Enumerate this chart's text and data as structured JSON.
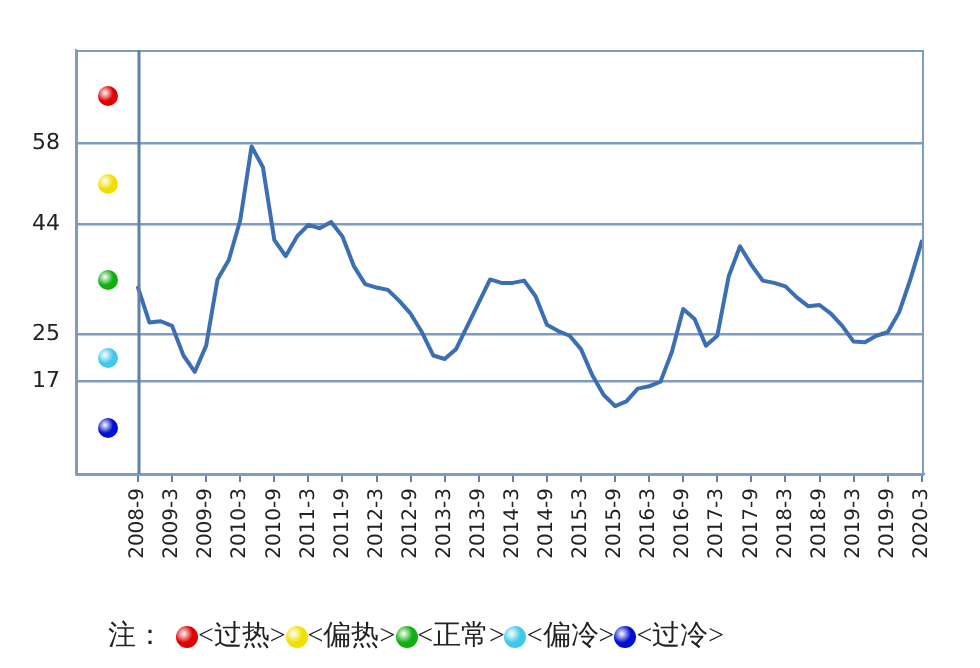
{
  "chart_data": {
    "type": "line",
    "categories": [
      "2008-9",
      null,
      null,
      "2009-3",
      null,
      null,
      "2009-9",
      null,
      null,
      "2010-3",
      null,
      null,
      "2010-9",
      null,
      null,
      "2011-3",
      null,
      null,
      "2011-9",
      null,
      null,
      "2012-3",
      null,
      null,
      "2012-9",
      null,
      null,
      "2013-3",
      null,
      null,
      "2013-9",
      null,
      null,
      "2014-3",
      null,
      null,
      "2014-9",
      null,
      null,
      "2015-3",
      null,
      null,
      "2015-9",
      null,
      null,
      "2016-3",
      null,
      null,
      "2016-9",
      null,
      null,
      "2017-3",
      null,
      null,
      "2017-9",
      null,
      null,
      "2018-3",
      null,
      null,
      "2018-9",
      null,
      null,
      "2019-3",
      null,
      null,
      "2019-9",
      null,
      null,
      "2020-3"
    ],
    "series": [
      {
        "color": "#3c6eb4",
        "values": [
          33.1,
          27.1,
          27.3,
          26.5,
          21.4,
          18.6,
          23.1,
          34.5,
          37.9,
          44.7,
          57.4,
          53.8,
          41.3,
          38.5,
          41.9,
          43.9,
          43.3,
          44.4,
          41.9,
          36.8,
          33.7,
          33.1,
          32.7,
          30.8,
          28.6,
          25.4,
          21.4,
          20.8,
          22.5,
          26.5,
          30.5,
          34.5,
          33.9,
          33.9,
          34.3,
          31.6,
          26.7,
          25.6,
          24.8,
          22.5,
          18.0,
          14.6,
          12.7,
          13.5,
          15.7,
          16.1,
          16.9,
          22.0,
          29.4,
          27.7,
          23.1,
          24.8,
          35.0,
          40.2,
          37.0,
          34.3,
          33.9,
          33.3,
          31.4,
          29.9,
          30.1,
          28.6,
          26.5,
          23.8,
          23.7,
          24.8,
          25.4,
          28.8,
          34.5,
          41.0
        ]
      }
    ],
    "ylim": [
      1,
      74
    ],
    "yticks": [
      17,
      25,
      44,
      58
    ],
    "grid": "y",
    "legend": false,
    "marker": "none",
    "line_style": "solid",
    "annotations": [
      "注：",
      "<过热>",
      "<偏热>",
      "<正常>",
      "<偏冷>",
      "<过冷>"
    ]
  }
}
